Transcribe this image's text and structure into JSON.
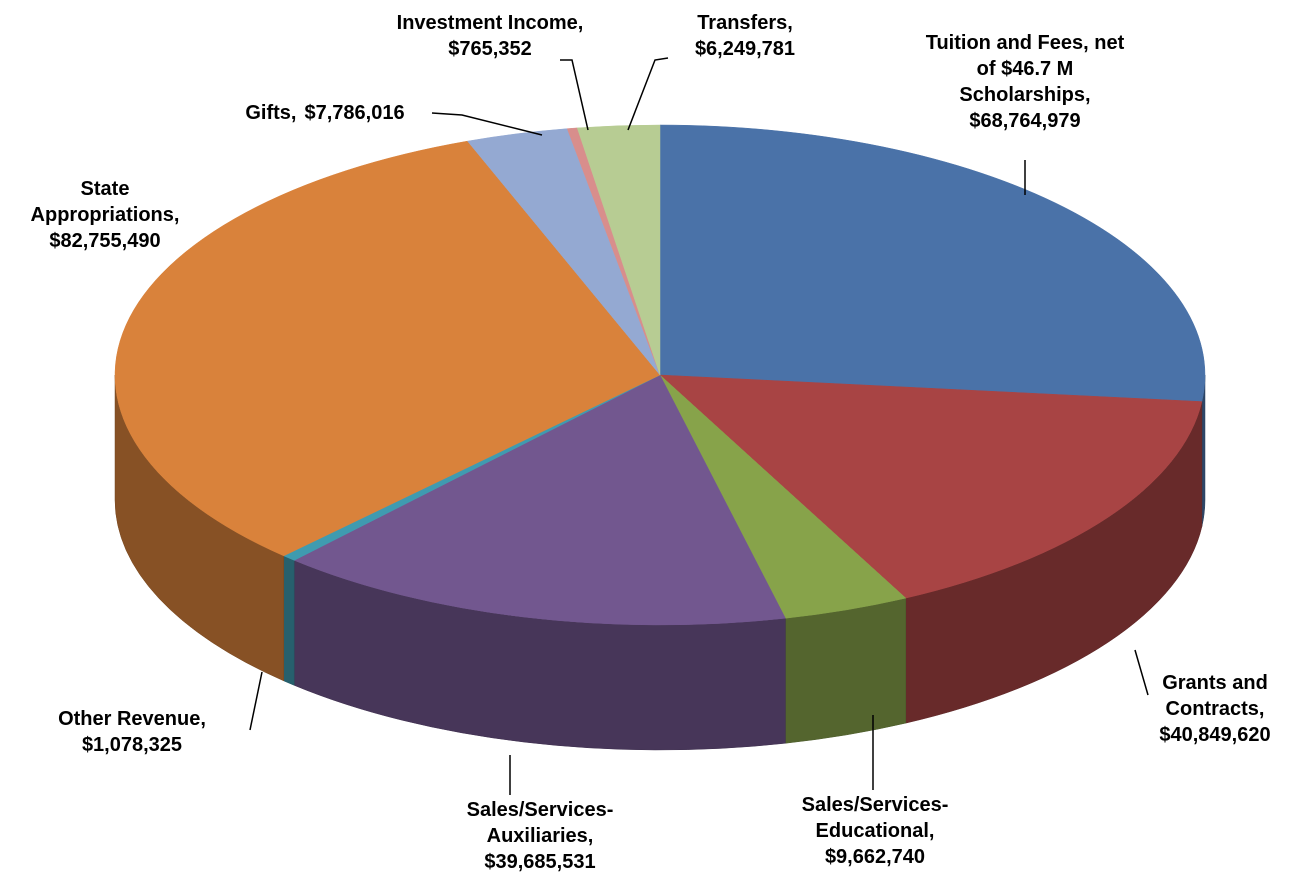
{
  "chart_data": {
    "type": "pie",
    "categories": [
      "Tuition and Fees, net of $46.7 M Scholarships,",
      "Grants and Contracts,",
      "Sales/Services-Educational,",
      "Sales/Services-Auxiliaries,",
      "Other Revenue,",
      "State Appropriations,",
      "Gifts,",
      "Investment Income,",
      "Transfers,"
    ],
    "values": [
      68764979,
      40849620,
      9662740,
      39685531,
      1078325,
      82755490,
      7786016,
      765352,
      6249781
    ],
    "value_labels": [
      "$68,764,979",
      "$40,849,620",
      "$9,662,740",
      "$39,685,531",
      "$1,078,325",
      "$82,755,490",
      "$7,786,016",
      "$765,352",
      "$6,249,781"
    ],
    "colors": [
      "#4a72a8",
      "#a84444",
      "#87a34a",
      "#72578f",
      "#3f9bb0",
      "#d9823b",
      "#94a9d2",
      "#d88e8c",
      "#b7cc93"
    ]
  }
}
